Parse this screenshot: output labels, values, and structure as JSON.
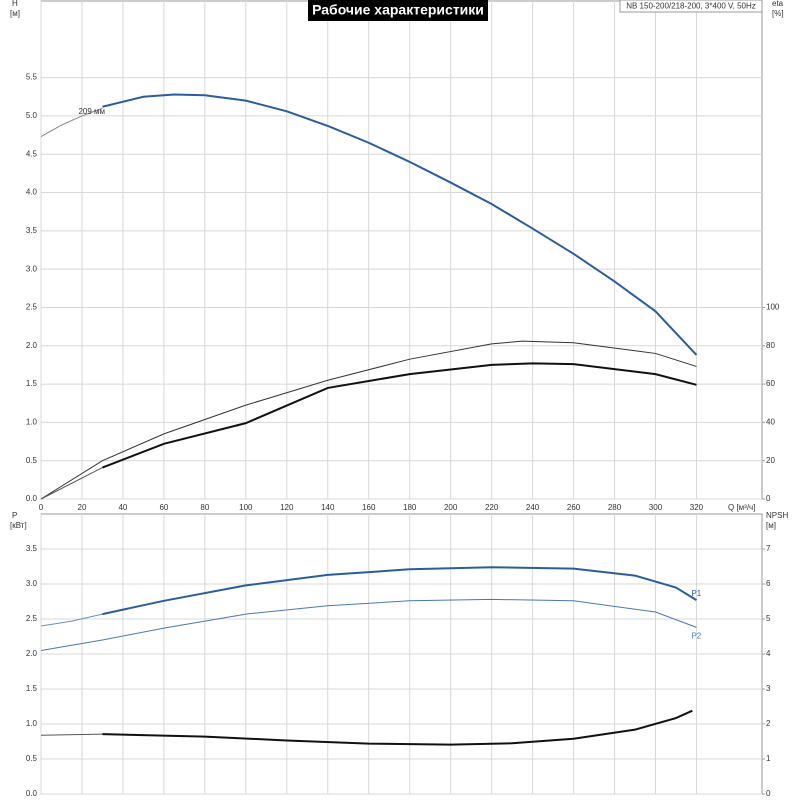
{
  "chart_data": [
    {
      "type": "line",
      "title": "Рабочие характеристики",
      "subtitle": "NB 150-200/218-200, 3*400 V, 50Hz",
      "ylabel": [
        "H",
        "[м]"
      ],
      "y2label": [
        "eta",
        "[%]"
      ],
      "xlabel": "Q [м³/ч]",
      "xlim": [
        0,
        352
      ],
      "xticks": [
        0,
        20,
        40,
        60,
        80,
        100,
        120,
        140,
        160,
        180,
        200,
        220,
        240,
        260,
        280,
        300,
        320
      ],
      "ylim": [
        0,
        6.5
      ],
      "yticks": [
        {
          "value": 0,
          "label": "0.0"
        },
        0.5,
        {
          "value": 1,
          "label": "1.0"
        },
        1.5,
        {
          "value": 2,
          "label": "2.0"
        },
        2.5,
        {
          "value": 3,
          "label": "3.0"
        },
        3.5,
        {
          "value": 4,
          "label": "4.0"
        },
        4.5,
        {
          "value": 5,
          "label": "5.0"
        },
        5.5
      ],
      "y2lim": [
        0,
        260
      ],
      "y2ticks": [
        0,
        20,
        40,
        60,
        80,
        100
      ],
      "grid": true,
      "series": [
        {
          "color": "#888888",
          "width": 1,
          "x": [
            0,
            10,
            20,
            30
          ],
          "values": [
            4.73,
            4.88,
            5.0,
            5.1
          ]
        },
        {
          "name": "209 мм",
          "label_at": "start",
          "color": "#2b5d9b",
          "width": 2,
          "x": [
            30,
            50,
            65,
            80,
            100,
            120,
            140,
            160,
            180,
            200,
            220,
            240,
            260,
            280,
            300,
            320
          ],
          "values": [
            5.12,
            5.25,
            5.28,
            5.27,
            5.2,
            5.06,
            4.87,
            4.65,
            4.4,
            4.13,
            3.85,
            3.53,
            3.2,
            2.84,
            2.45,
            1.88
          ]
        },
        {
          "axis": "y2",
          "color": "#333333",
          "width": 1,
          "x": [
            0,
            30,
            60,
            100,
            140,
            180,
            220,
            235,
            260,
            300,
            320
          ],
          "values": [
            0,
            20,
            34,
            49,
            62,
            73,
            81,
            82.4,
            81.6,
            76,
            69.2
          ]
        },
        {
          "axis": "y2",
          "color": "#555555",
          "width": 1,
          "x": [
            0,
            30
          ],
          "values": [
            0,
            16.4
          ]
        },
        {
          "axis": "y2",
          "color": "#111111",
          "width": 2,
          "x": [
            30,
            60,
            100,
            140,
            180,
            220,
            240,
            260,
            300,
            320
          ],
          "values": [
            16.4,
            28.8,
            39.6,
            58,
            65.2,
            70,
            70.8,
            70.4,
            65.2,
            59.6
          ]
        }
      ]
    },
    {
      "type": "line",
      "ylabel": [
        "P",
        "[кВт]"
      ],
      "y2label": [
        "NPSH",
        "[м]"
      ],
      "xlim": [
        0,
        352
      ],
      "xticks": [
        0,
        20,
        40,
        60,
        80,
        100,
        120,
        140,
        160,
        180,
        200,
        220,
        240,
        260,
        280,
        300,
        320
      ],
      "ylim": [
        0,
        4
      ],
      "yticks": [
        {
          "value": 0,
          "label": "0.0"
        },
        0.5,
        {
          "value": 1,
          "label": "1.0"
        },
        1.5,
        {
          "value": 2,
          "label": "2.0"
        },
        2.5,
        {
          "value": 3,
          "label": "3.0"
        },
        3.5
      ],
      "y2lim": [
        0,
        8
      ],
      "y2ticks": [
        0,
        1,
        2,
        3,
        4,
        5,
        6,
        7
      ],
      "grid": true,
      "series": [
        {
          "color": "#6a8fbf",
          "width": 1,
          "x": [
            0,
            15,
            30
          ],
          "values": [
            2.4,
            2.47,
            2.57
          ]
        },
        {
          "name": "P1",
          "label_at": "end",
          "color": "#2b5d9b",
          "width": 2,
          "x": [
            30,
            60,
            100,
            140,
            180,
            220,
            260,
            290,
            310,
            320
          ],
          "values": [
            2.57,
            2.76,
            2.98,
            3.13,
            3.21,
            3.24,
            3.22,
            3.12,
            2.95,
            2.77
          ]
        },
        {
          "name": "P2",
          "label_at": "end",
          "color": "#4a78b0",
          "width": 1,
          "x": [
            0,
            30,
            60,
            100,
            140,
            180,
            220,
            260,
            300,
            320
          ],
          "values": [
            2.05,
            2.2,
            2.37,
            2.57,
            2.69,
            2.76,
            2.78,
            2.76,
            2.6,
            2.38
          ]
        },
        {
          "axis": "y2",
          "color": "#555555",
          "width": 1,
          "x": [
            0,
            30
          ],
          "values": [
            1.68,
            1.71
          ]
        },
        {
          "axis": "y2",
          "color": "#111111",
          "width": 2,
          "x": [
            30,
            80,
            120,
            160,
            200,
            230,
            260,
            290,
            310,
            318
          ],
          "values": [
            1.71,
            1.64,
            1.53,
            1.44,
            1.41,
            1.45,
            1.58,
            1.84,
            2.17,
            2.38
          ]
        }
      ]
    }
  ]
}
